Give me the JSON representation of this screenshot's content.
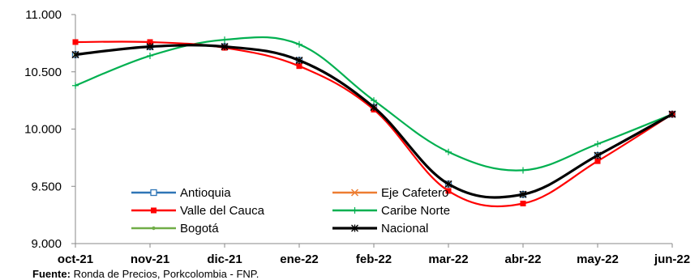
{
  "chart_data": {
    "type": "line",
    "title": "",
    "xlabel": "",
    "ylabel": "",
    "categories": [
      "oct-21",
      "nov-21",
      "dic-21",
      "ene-22",
      "feb-22",
      "mar-22",
      "abr-22",
      "may-22",
      "jun-22"
    ],
    "y_ticks": [
      "9.000",
      "9.500",
      "10.000",
      "10.500",
      "11.000"
    ],
    "ylim": [
      9000,
      11000
    ],
    "grid": false,
    "legend_position": "lower-left",
    "series": [
      {
        "name": "Antioquia",
        "color": "#2E75B6",
        "marker": "square-open",
        "values": [
          10650,
          10720,
          10720,
          10600,
          10190,
          9520,
          9430,
          9770,
          10130
        ]
      },
      {
        "name": "Eje Cafetero",
        "color": "#ED7D31",
        "marker": "x",
        "values": [
          10650,
          10720,
          10720,
          10600,
          10190,
          9520,
          9430,
          9770,
          10130
        ]
      },
      {
        "name": "Valle del Cauca",
        "color": "#FF0000",
        "marker": "square",
        "values": [
          10760,
          10760,
          10710,
          10550,
          10170,
          9460,
          9350,
          9720,
          10130
        ]
      },
      {
        "name": "Caribe Norte",
        "color": "#00B050",
        "marker": "plus",
        "values": [
          10380,
          10640,
          10780,
          10740,
          10250,
          9800,
          9640,
          9870,
          10130
        ]
      },
      {
        "name": "Bogotá",
        "color": "#70AD47",
        "marker": "dot",
        "values": [
          10650,
          10720,
          10720,
          10600,
          10190,
          9520,
          9430,
          9770,
          10130
        ]
      },
      {
        "name": "Nacional",
        "color": "#000000",
        "marker": "star",
        "values": [
          10650,
          10720,
          10720,
          10600,
          10190,
          9520,
          9430,
          9770,
          10130
        ]
      }
    ]
  },
  "source": {
    "label": "Fuente:",
    "text": "Ronda de Precios, Porkcolombia  - FNP."
  }
}
